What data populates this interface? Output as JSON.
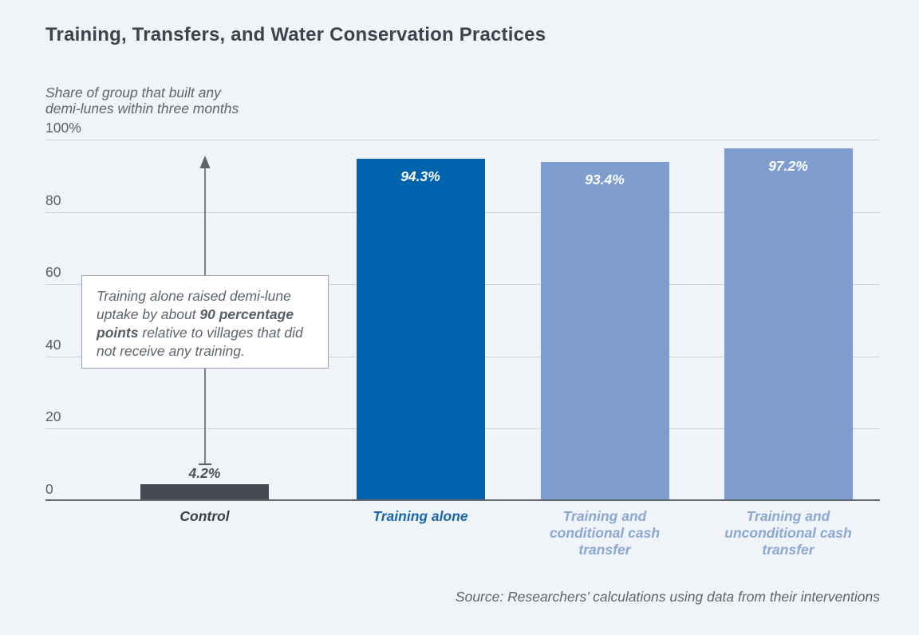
{
  "title": "Training, Transfers, and Water Conservation Practices",
  "subtitle": "Share of group that built any\ndemi-lunes within three months",
  "annotation": {
    "pre": "Training alone raised demi-lune uptake by about ",
    "bold": "90 percentage points",
    "post": " relative to villages that did not receive any training."
  },
  "source": "Source: Researchers’ calculations using data from their interventions",
  "colors": {
    "background": "#f0f4f9",
    "control_bar": "#474b51",
    "primary_bar": "#0063ad",
    "secondary_bar": "#7f9ecf",
    "gridline": "#c9cfd6",
    "baseline": "#5f666d",
    "primary_label": "#1668ae",
    "secondary_label": "#8ba7d4"
  },
  "chart_data": {
    "type": "bar",
    "title": "Training, Transfers, and Water Conservation Practices",
    "ylabel": "Share of group that built any demi-lunes within three months",
    "xlabel": "",
    "ylim": [
      0,
      100
    ],
    "grid": true,
    "legend": "none",
    "categories": [
      "Control",
      "Training alone",
      "Training and\nconditional cash\ntransfer",
      "Training and\nunconditional cash\ntransfer"
    ],
    "values": [
      4.2,
      94.3,
      93.4,
      97.2
    ],
    "value_labels": [
      "4.2%",
      "94.3%",
      "93.4%",
      "97.2%"
    ],
    "bar_colors": [
      "#474b51",
      "#0063ad",
      "#7f9ecf",
      "#7f9ecf"
    ],
    "category_label_colors": [
      "#3c4249",
      "#1668ae",
      "#8ba7d4",
      "#8ba7d4"
    ],
    "yticks": [
      {
        "value": 0,
        "label": "0"
      },
      {
        "value": 20,
        "label": "20"
      },
      {
        "value": 40,
        "label": "40"
      },
      {
        "value": 60,
        "label": "60"
      },
      {
        "value": 80,
        "label": "80"
      },
      {
        "value": 100,
        "label": "100%"
      }
    ],
    "annotation_text": "Training alone raised demi-lune uptake by about 90 percentage points relative to villages that did not receive any training."
  }
}
